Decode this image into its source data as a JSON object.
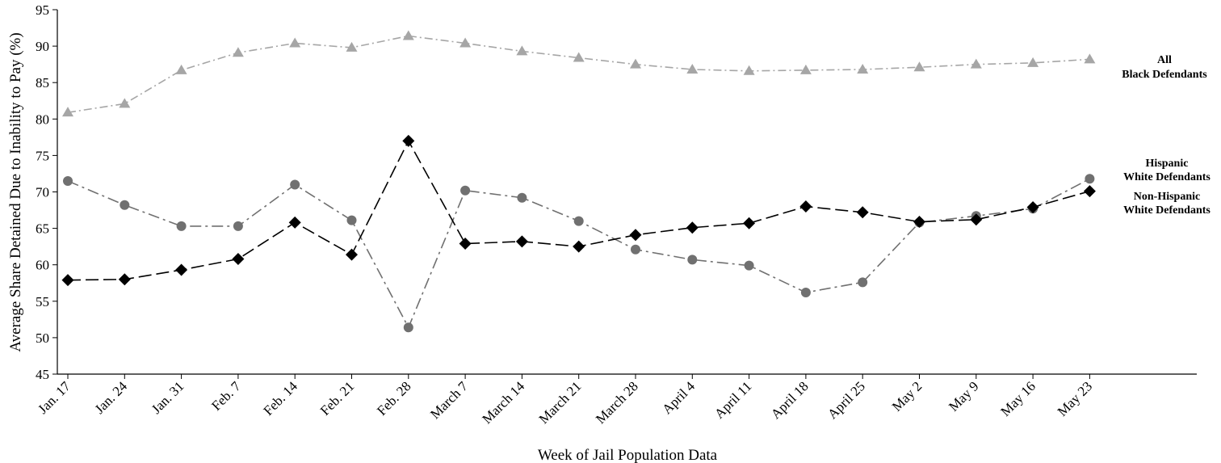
{
  "chart_data": {
    "type": "line",
    "title": "",
    "xlabel": "Week of Jail Population Data",
    "ylabel": "Average Share Detained Due to Inability to Pay (%)",
    "ylim": [
      45,
      95
    ],
    "yticks": [
      45,
      50,
      55,
      60,
      65,
      70,
      75,
      80,
      85,
      90,
      95
    ],
    "grid": false,
    "categories": [
      "Jan. 17",
      "Jan. 24",
      "Jan. 31",
      "Feb. 7",
      "Feb. 14",
      "Feb. 21",
      "Feb. 28",
      "March 7",
      "March 14",
      "March 21",
      "March 28",
      "April 4",
      "April 11",
      "April 18",
      "April 25",
      "May 2",
      "May 9",
      "May 16",
      "May 23"
    ],
    "series": [
      {
        "name": "All Black Defendants",
        "label_lines": [
          "All",
          "Black Defendants"
        ],
        "color": "#a6a6a6",
        "marker": "triangle",
        "dash": "dashdot",
        "values": [
          80.9,
          82.1,
          86.7,
          89.1,
          90.4,
          89.8,
          91.4,
          90.4,
          89.3,
          88.4,
          87.5,
          86.8,
          86.6,
          86.7,
          86.8,
          87.1,
          87.5,
          87.7,
          88.2
        ]
      },
      {
        "name": "Hispanic White Defendants",
        "label_lines": [
          "Hispanic",
          "White Defendants"
        ],
        "color": "#707070",
        "marker": "circle",
        "dash": "longdashdot",
        "values": [
          71.5,
          68.2,
          65.3,
          65.3,
          71.0,
          66.1,
          51.4,
          70.2,
          69.2,
          66.0,
          62.1,
          60.7,
          59.9,
          56.2,
          57.6,
          65.8,
          66.7,
          67.7,
          71.8
        ]
      },
      {
        "name": "Non-Hispanic White Defendants",
        "label_lines": [
          "Non-Hispanic",
          "White Defendants"
        ],
        "color": "#000000",
        "marker": "diamond",
        "dash": "longdash",
        "values": [
          57.9,
          58.0,
          59.3,
          60.8,
          65.8,
          61.4,
          77.0,
          62.9,
          63.2,
          62.5,
          64.1,
          65.1,
          65.7,
          68.0,
          67.2,
          65.9,
          66.2,
          67.9,
          70.1
        ]
      }
    ]
  }
}
